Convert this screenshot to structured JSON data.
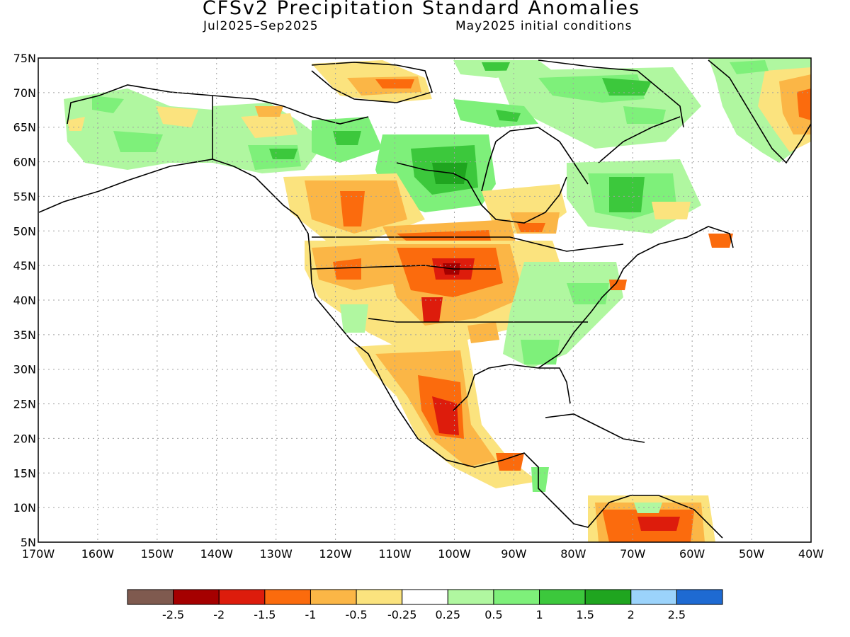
{
  "header": {
    "title": "CFSv2 Precipitation Standard Anomalies",
    "period": "Jul2025–Sep2025",
    "initial_conditions": "May2025 initial conditions"
  },
  "map": {
    "lat_labels": [
      "75N",
      "70N",
      "65N",
      "60N",
      "55N",
      "50N",
      "45N",
      "40N",
      "35N",
      "30N",
      "25N",
      "20N",
      "15N",
      "10N",
      "5N"
    ],
    "lon_labels": [
      "170W",
      "160W",
      "150W",
      "140W",
      "130W",
      "120W",
      "110W",
      "100W",
      "90W",
      "80W",
      "70W",
      "60W",
      "50W",
      "40W"
    ]
  },
  "legend": {
    "colors": [
      "#7f5a4f",
      "#a50000",
      "#dd1c0c",
      "#fb6b0d",
      "#fbb646",
      "#fbe37e",
      "#ffffff",
      "#b0f7a0",
      "#7ef07a",
      "#3cc83c",
      "#1fa51f",
      "#9bd3fb",
      "#1e6ad2"
    ],
    "labels": [
      "-2.5",
      "-2",
      "-1.5",
      "-1",
      "-0.5",
      "-0.25",
      "0.25",
      "0.5",
      "1",
      "1.5",
      "2",
      "2.5"
    ]
  },
  "colors": {
    "land_outline": "#000000",
    "grid": "#a0a0a0",
    "background": "#ffffff"
  }
}
